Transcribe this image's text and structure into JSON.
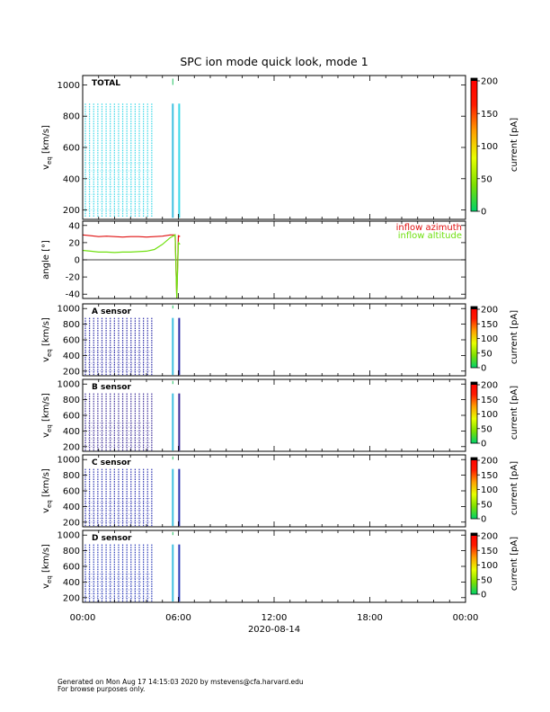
{
  "title": "SPC ion mode quick look, mode 1",
  "footer": {
    "line1": "Generated on Mon Aug 17 14:15:03 2020 by mstevens@cfa.harvard.edu",
    "line2": "For browse purposes only."
  },
  "x_axis": {
    "tick_labels": [
      "00:00",
      "06:00",
      "12:00",
      "18:00",
      "00:00"
    ],
    "date_label": "2020-08-14"
  },
  "colorbar": {
    "label": "current [pA]",
    "ticks": [
      0,
      50,
      100,
      150,
      200
    ],
    "colors": [
      "#00d26a",
      "#7ee000",
      "#e8ff00",
      "#ff9f00",
      "#ff1a00",
      "#ff0000"
    ]
  },
  "chart_data": [
    {
      "type": "heatmap",
      "panel": "TOTAL",
      "label": "TOTAL",
      "ylabel": "v_eq [km/s]",
      "ylabel_main": "v",
      "ylabel_sub": "eq",
      "ylabel_unit": "[km/s]",
      "ylim": [
        140,
        1060
      ],
      "yticks": [
        200,
        400,
        600,
        800,
        1000
      ],
      "xlim_hours": [
        0,
        24
      ],
      "dominant_color": "#3ad8e8",
      "sweep_hours": [
        0.17,
        0.43,
        0.69,
        0.95,
        1.21,
        1.47,
        1.73,
        1.99,
        2.25,
        2.51,
        2.77,
        3.03,
        3.29,
        3.55,
        3.81,
        4.07,
        4.33
      ],
      "burst_hours": [
        5.65,
        6.05
      ],
      "vmin": 150,
      "vmax": 880
    },
    {
      "type": "line",
      "panel": "angle",
      "ylabel": "angle [°]",
      "ylim": [
        -45,
        45
      ],
      "yticks": [
        -40,
        -20,
        0,
        20,
        40
      ],
      "zero_line": true,
      "series": [
        {
          "name": "inflow azimuth",
          "color": "#e01010",
          "x_hours": [
            0.0,
            0.5,
            1.0,
            1.5,
            2.0,
            2.5,
            3.0,
            3.5,
            4.0,
            4.5,
            5.0,
            5.5,
            5.8,
            5.9,
            6.0,
            6.1
          ],
          "y": [
            29,
            28,
            27,
            27.5,
            27,
            26.5,
            27,
            27,
            26.5,
            27,
            27.5,
            29,
            29,
            -45,
            28,
            27
          ]
        },
        {
          "name": "inflow altitude",
          "color": "#70e010",
          "x_hours": [
            0.0,
            0.5,
            1.0,
            1.5,
            2.0,
            2.5,
            3.0,
            3.5,
            4.0,
            4.5,
            5.0,
            5.5,
            5.8,
            5.9,
            6.0,
            6.1
          ],
          "y": [
            11,
            10,
            9,
            9,
            8.5,
            9,
            9,
            9.5,
            10,
            12,
            18,
            26,
            29,
            -45,
            20,
            18
          ]
        }
      ]
    },
    {
      "type": "heatmap",
      "panel": "A sensor",
      "label": "A sensor",
      "ylabel": "v_eq [km/s]",
      "ylabel_main": "v",
      "ylabel_sub": "eq",
      "ylabel_unit": "[km/s]",
      "ylim": [
        140,
        1060
      ],
      "yticks": [
        200,
        400,
        600,
        800,
        1000
      ],
      "dominant_color": "#2a2aa8",
      "sweep_hours": [
        0.17,
        0.43,
        0.69,
        0.95,
        1.21,
        1.47,
        1.73,
        1.99,
        2.25,
        2.51,
        2.77,
        3.03,
        3.29,
        3.55,
        3.81,
        4.07,
        4.33
      ],
      "burst_hours": [
        5.65,
        6.05
      ],
      "vmin": 150,
      "vmax": 880
    },
    {
      "type": "heatmap",
      "panel": "B sensor",
      "label": "B sensor",
      "ylabel": "v_eq [km/s]",
      "ylabel_main": "v",
      "ylabel_sub": "eq",
      "ylabel_unit": "[km/s]",
      "ylim": [
        140,
        1060
      ],
      "yticks": [
        200,
        400,
        600,
        800,
        1000
      ],
      "dominant_color": "#3a2a98",
      "sweep_hours": [
        0.17,
        0.43,
        0.69,
        0.95,
        1.21,
        1.47,
        1.73,
        1.99,
        2.25,
        2.51,
        2.77,
        3.03,
        3.29,
        3.55,
        3.81,
        4.07,
        4.33
      ],
      "burst_hours": [
        5.65,
        6.05
      ],
      "vmin": 150,
      "vmax": 880
    },
    {
      "type": "heatmap",
      "panel": "C sensor",
      "label": "C sensor",
      "ylabel": "v_eq [km/s]",
      "ylabel_main": "v",
      "ylabel_sub": "eq",
      "ylabel_unit": "[km/s]",
      "ylim": [
        140,
        1060
      ],
      "yticks": [
        200,
        400,
        600,
        800,
        1000
      ],
      "dominant_color": "#2a30b0",
      "sweep_hours": [
        0.17,
        0.43,
        0.69,
        0.95,
        1.21,
        1.47,
        1.73,
        1.99,
        2.25,
        2.51,
        2.77,
        3.03,
        3.29,
        3.55,
        3.81,
        4.07,
        4.33
      ],
      "burst_hours": [
        5.65,
        6.05
      ],
      "vmin": 150,
      "vmax": 880
    },
    {
      "type": "heatmap",
      "panel": "D sensor",
      "label": "D sensor",
      "ylabel": "v_eq [km/s]",
      "ylabel_main": "v",
      "ylabel_sub": "eq",
      "ylabel_unit": "[km/s]",
      "ylim": [
        140,
        1060
      ],
      "yticks": [
        200,
        400,
        600,
        800,
        1000
      ],
      "dominant_color": "#2a3ab8",
      "sweep_hours": [
        0.17,
        0.43,
        0.69,
        0.95,
        1.21,
        1.47,
        1.73,
        1.99,
        2.25,
        2.51,
        2.77,
        3.03,
        3.29,
        3.55,
        3.81,
        4.07,
        4.33
      ],
      "burst_hours": [
        5.65,
        6.05
      ],
      "vmin": 150,
      "vmax": 880
    }
  ]
}
